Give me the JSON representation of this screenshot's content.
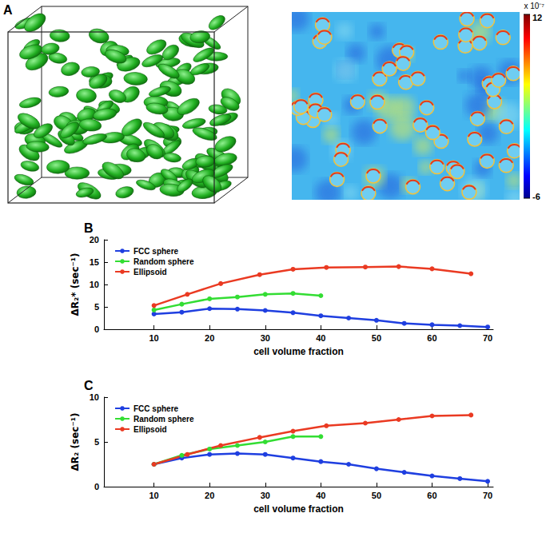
{
  "panel_a": {
    "label": "A",
    "colorbar": {
      "range": [
        -6,
        12
      ],
      "ticks": [
        -6,
        12
      ],
      "multiplier_label": "x 10⁻⁷"
    }
  },
  "chart_data": [
    {
      "label": "B",
      "type": "line",
      "x_label": "cell volume fraction",
      "y_label": "ΔR₂* (sec⁻¹)",
      "xlim": [
        1,
        71
      ],
      "xticks": [
        10,
        20,
        30,
        40,
        50,
        60,
        70
      ],
      "ylim": [
        0,
        20
      ],
      "yticks": [
        0,
        5,
        10,
        15,
        20
      ],
      "grid": false,
      "legend": "top-left",
      "series": [
        {
          "name": "FCC sphere",
          "color": "#1f3fe0",
          "marker": "circle",
          "line_style": "solid",
          "x": [
            10,
            15,
            20,
            25,
            30,
            35,
            40,
            45,
            50,
            55,
            60,
            65,
            70
          ],
          "values": [
            3.4,
            3.8,
            4.6,
            4.5,
            4.2,
            3.7,
            3.0,
            2.5,
            2.0,
            1.3,
            1.0,
            0.8,
            0.5
          ]
        },
        {
          "name": "Random sphere",
          "color": "#33dd33",
          "marker": "circle",
          "line_style": "solid",
          "x": [
            10,
            15,
            20,
            25,
            30,
            35,
            40
          ],
          "values": [
            4.3,
            5.6,
            6.8,
            7.2,
            7.8,
            8.0,
            7.5
          ]
        },
        {
          "name": "Ellipsoid",
          "color": "#ea3a22",
          "marker": "circle",
          "line_style": "solid",
          "x": [
            10,
            16,
            22,
            29,
            35,
            41,
            48,
            54,
            60,
            67
          ],
          "values": [
            5.3,
            7.8,
            10.2,
            12.2,
            13.4,
            13.8,
            13.9,
            14.0,
            13.5,
            12.4
          ]
        }
      ]
    },
    {
      "label": "C",
      "type": "line",
      "x_label": "cell volume fraction",
      "y_label": "ΔR₂ (sec⁻¹)",
      "xlim": [
        1,
        71
      ],
      "xticks": [
        10,
        20,
        30,
        40,
        50,
        60,
        70
      ],
      "ylim": [
        0,
        10
      ],
      "yticks": [
        0,
        5,
        10
      ],
      "grid": false,
      "legend": "top-left",
      "series": [
        {
          "name": "FCC sphere",
          "color": "#1f3fe0",
          "marker": "circle",
          "line_style": "solid",
          "x": [
            10,
            15,
            20,
            25,
            30,
            35,
            40,
            45,
            50,
            55,
            60,
            65,
            70
          ],
          "values": [
            2.5,
            3.2,
            3.6,
            3.7,
            3.6,
            3.2,
            2.8,
            2.5,
            2.0,
            1.6,
            1.2,
            0.9,
            0.6
          ]
        },
        {
          "name": "Random sphere",
          "color": "#33dd33",
          "marker": "circle",
          "line_style": "solid",
          "x": [
            10,
            15,
            20,
            25,
            30,
            35,
            40
          ],
          "values": [
            2.5,
            3.5,
            4.2,
            4.6,
            5.0,
            5.6,
            5.6
          ]
        },
        {
          "name": "Ellipsoid",
          "color": "#ea3a22",
          "marker": "circle",
          "line_style": "solid",
          "x": [
            10,
            16,
            22,
            29,
            35,
            41,
            48,
            54,
            60,
            67
          ],
          "values": [
            2.5,
            3.6,
            4.6,
            5.5,
            6.2,
            6.8,
            7.1,
            7.5,
            7.9,
            8.0
          ]
        }
      ]
    }
  ]
}
